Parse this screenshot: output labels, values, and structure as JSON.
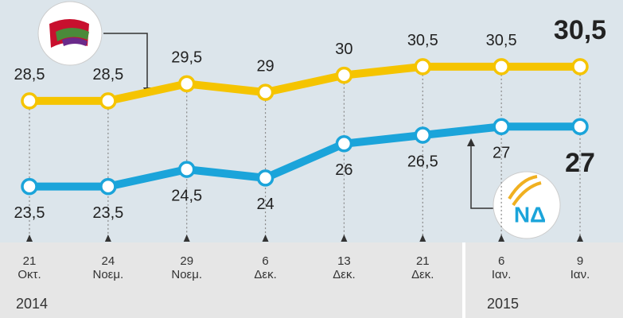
{
  "chart_data": {
    "type": "line",
    "categories": [
      "21\nΟκτ.",
      "24\nΝοεμ.",
      "29\nΝοεμ.",
      "6\nΔεκ.",
      "13\nΔεκ.",
      "21\nΔεκ.",
      "6\nΙαν.",
      "9\nΙαν."
    ],
    "years": [
      "2014",
      "2015"
    ],
    "series": [
      {
        "color": "#f5c400",
        "values": [
          28.5,
          28.5,
          29.5,
          29,
          30,
          30.5,
          30.5,
          30.5
        ],
        "value_labels": [
          "28,5",
          "28,5",
          "29,5",
          "29",
          "30",
          "30,5",
          "30,5",
          "30,5"
        ]
      },
      {
        "color": "#1ba4da",
        "values": [
          23.5,
          23.5,
          24.5,
          24,
          26,
          26.5,
          27,
          27
        ],
        "value_labels": [
          "23,5",
          "23,5",
          "24,5",
          "24",
          "26",
          "26,5",
          "27",
          "27"
        ]
      }
    ],
    "logo_text": "ΝΔ",
    "ylim": [
      20,
      33
    ]
  }
}
